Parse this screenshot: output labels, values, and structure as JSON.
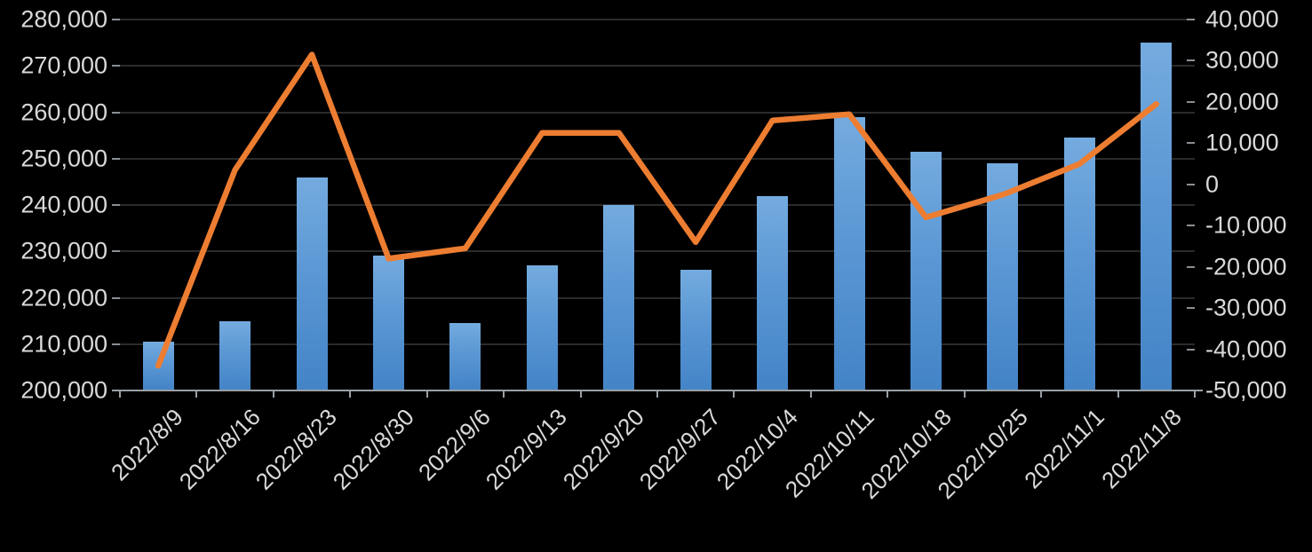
{
  "chart_data": {
    "type": "combo",
    "title": "",
    "xlabel": "",
    "ylabel_left": "",
    "ylabel_right": "",
    "background_color": "#000000",
    "grid": true,
    "legend": "none",
    "categories": [
      "2022/8/9",
      "2022/8/16",
      "2022/8/23",
      "2022/8/30",
      "2022/9/6",
      "2022/9/13",
      "2022/9/20",
      "2022/9/27",
      "2022/10/4",
      "2022/10/11",
      "2022/10/18",
      "2022/10/25",
      "2022/11/1",
      "2022/11/8"
    ],
    "series": [
      {
        "name": "bar-series",
        "type": "bar",
        "axis": "left",
        "color_top": "#74abdf",
        "color_bottom": "#4384c7",
        "values": [
          210500,
          215000,
          246000,
          229000,
          214500,
          227000,
          240000,
          226000,
          242000,
          259000,
          251500,
          249000,
          254500,
          275000
        ]
      },
      {
        "name": "line-series",
        "type": "line",
        "axis": "right",
        "color": "#ed7d31",
        "stroke_width": 6.5,
        "values": [
          -44000,
          3500,
          31500,
          -18000,
          -15500,
          12500,
          12500,
          -14000,
          15500,
          17000,
          -8000,
          -2500,
          5000,
          19500
        ]
      }
    ],
    "left_axis": {
      "min": 200000,
      "max": 280000,
      "step": 10000,
      "tick_labels": [
        "280,000",
        "270,000",
        "260,000",
        "250,000",
        "240,000",
        "230,000",
        "220,000",
        "210,000",
        "200,000"
      ]
    },
    "right_axis": {
      "min": -50000,
      "max": 40000,
      "step": 10000,
      "tick_labels": [
        "40,000",
        "30,000",
        "20,000",
        "10,000",
        "0",
        "-10,000",
        "-20,000",
        "-30,000",
        "-40,000",
        "-50,000"
      ]
    },
    "colors": {
      "gridline": "#2b2b2b",
      "axis_line": "#9aa0a5",
      "tick": "#8a8f94",
      "label_text": "#d9d9d9",
      "line": "#ed7d31"
    }
  }
}
